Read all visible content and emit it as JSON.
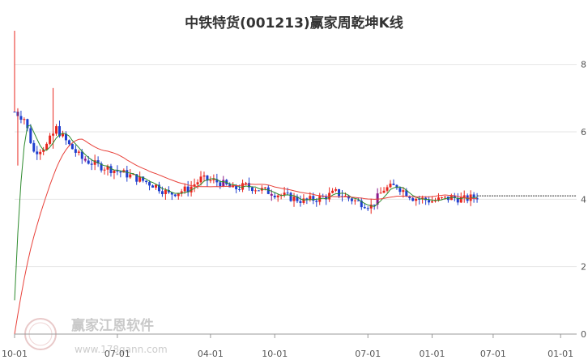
{
  "chart_data": {
    "type": "candlestick",
    "title": "中铁特货(001213)赢家周乾坤K线",
    "xlabel": "",
    "ylabel": "",
    "ylim": [
      0,
      9
    ],
    "y_ticks": [
      "0",
      "2",
      "4",
      "6",
      "8"
    ],
    "x_ticks": [
      "10-01",
      "07-01",
      "04-01",
      "10-01",
      "07-01",
      "01-01",
      "07-01",
      "01-01"
    ],
    "grid": "horizontal",
    "x_range": [
      0,
      175
    ],
    "x_tick_positions": [
      0,
      32,
      61,
      81,
      110,
      130,
      149,
      170
    ],
    "series": [
      {
        "name": "",
        "kind": "candles"
      },
      {
        "name": "",
        "kind": "ma_short",
        "color": "#2e8b2e"
      },
      {
        "name": "",
        "kind": "ma_long",
        "color": "#e8413a"
      }
    ],
    "last_price_line": 4.1,
    "colors": {
      "up": "#e8261e",
      "down": "#1f3fcf",
      "special": "#8b1a8b",
      "ma_short": "#2e8b2e",
      "ma_long": "#e8413a",
      "grid": "#e6e6e6"
    },
    "watermark": {
      "text": "赢家江恩软件",
      "url": "www.178gann.com",
      "logo_text": "江恩赢家"
    }
  }
}
